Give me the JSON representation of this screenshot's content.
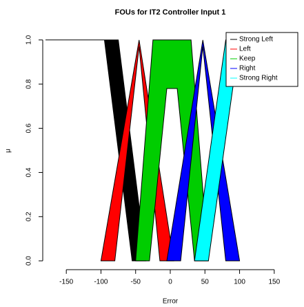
{
  "chart_data": {
    "type": "polygon",
    "title": "FOUs for IT2 Controller Input 1",
    "x_label": "Error",
    "y_label": "μ",
    "xlim": [
      -184,
      182
    ],
    "ylim": [
      -0.04,
      1.04
    ],
    "xticks": [
      -150,
      -100,
      -50,
      0,
      50,
      100,
      150
    ],
    "yticks": [
      {
        "value": 0,
        "label": "0.0"
      },
      {
        "value": 0.2,
        "label": "0.2"
      },
      {
        "value": 0.4,
        "label": "0.4"
      },
      {
        "value": 0.6,
        "label": "0.6"
      },
      {
        "value": 0.8,
        "label": "0.8"
      },
      {
        "value": 1,
        "label": "1.0"
      }
    ],
    "legend": "top-right",
    "series": [
      {
        "name": "Strong Left",
        "color": "#000000",
        "x": [
          -180,
          -75,
          -35,
          -55,
          -95
        ],
        "values": [
          1,
          1,
          0,
          0,
          1
        ]
      },
      {
        "name": "Left",
        "color": "#ff0000",
        "x": [
          -100,
          -45,
          5,
          -15,
          -45,
          -80
        ],
        "values": [
          0,
          1,
          0,
          0,
          0.97,
          0
        ]
      },
      {
        "name": "Keep",
        "color": "#00cd00",
        "x": [
          -50,
          -25,
          30,
          55,
          35,
          10,
          -5,
          -30
        ],
        "values": [
          0,
          1,
          1,
          0,
          0,
          0.78,
          0.78,
          0
        ]
      },
      {
        "name": "Right",
        "color": "#0000ff",
        "x": [
          -5,
          47,
          100,
          80,
          47,
          15
        ],
        "values": [
          0,
          1,
          0,
          0,
          0.97,
          0
        ]
      },
      {
        "name": "Strong Right",
        "color": "#00ffff",
        "x": [
          35,
          55,
          100,
          180,
          80
        ],
        "values": [
          0,
          0,
          1,
          1,
          1
        ]
      }
    ]
  }
}
